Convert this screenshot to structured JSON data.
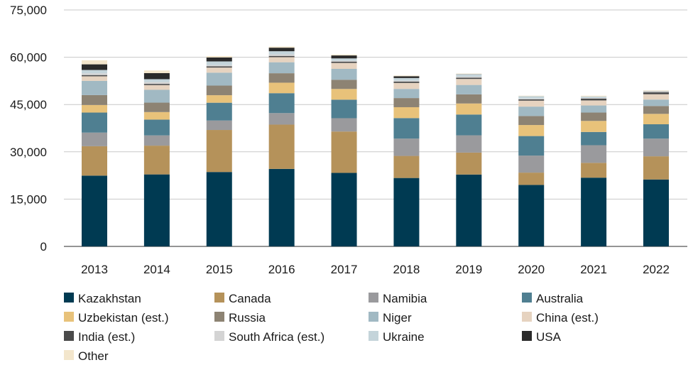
{
  "chart_data": {
    "type": "bar",
    "stacked": true,
    "categories": [
      "2013",
      "2014",
      "2015",
      "2016",
      "2017",
      "2018",
      "2019",
      "2020",
      "2021",
      "2022"
    ],
    "ylim": [
      0,
      75000
    ],
    "yticks": [
      0,
      15000,
      30000,
      45000,
      60000,
      75000
    ],
    "ytick_labels": [
      "0",
      "15,000",
      "30,000",
      "45,000",
      "60,000",
      "75,000"
    ],
    "grid": true,
    "legend_position": "bottom",
    "series": [
      {
        "name": "Kazakhstan",
        "color": "#003a52",
        "values": [
          22450,
          22830,
          23600,
          24590,
          23320,
          21700,
          22800,
          19500,
          21800,
          21230
        ]
      },
      {
        "name": "Canada",
        "color": "#b5925a",
        "values": [
          9330,
          9130,
          13330,
          14040,
          13120,
          7000,
          6950,
          3900,
          4700,
          7350
        ]
      },
      {
        "name": "Namibia",
        "color": "#9a9a9d",
        "values": [
          4320,
          3250,
          2990,
          3650,
          4220,
          5500,
          5480,
          5400,
          5600,
          5610
        ]
      },
      {
        "name": "Australia",
        "color": "#4f7f91",
        "values": [
          6350,
          5000,
          5650,
          6320,
          5880,
          6500,
          6600,
          6200,
          4200,
          4550
        ]
      },
      {
        "name": "Uzbekistan (est.)",
        "color": "#e8c27a",
        "values": [
          2400,
          2400,
          2385,
          3325,
          3400,
          3450,
          3500,
          3500,
          3500,
          3300
        ]
      },
      {
        "name": "Russia",
        "color": "#8d8373",
        "values": [
          3140,
          2990,
          3055,
          3004,
          2917,
          2900,
          2900,
          2850,
          2650,
          2500
        ]
      },
      {
        "name": "Niger",
        "color": "#a1b9c3",
        "values": [
          4520,
          4060,
          4100,
          3480,
          3450,
          2900,
          2980,
          2990,
          2250,
          2030
        ]
      },
      {
        "name": "China (est.)",
        "color": "#e6d3c0",
        "values": [
          1450,
          1500,
          1615,
          1616,
          1885,
          1900,
          1900,
          1900,
          1600,
          1700
        ]
      },
      {
        "name": "India (est.)",
        "color": "#4a4a4a",
        "values": [
          385,
          385,
          385,
          385,
          421,
          420,
          380,
          400,
          600,
          600
        ]
      },
      {
        "name": "South Africa (est.)",
        "color": "#d4d4d4",
        "values": [
          540,
          570,
          365,
          490,
          308,
          340,
          350,
          250,
          190,
          200
        ]
      },
      {
        "name": "Ukraine",
        "color": "#c4d4da",
        "values": [
          1075,
          926,
          1200,
          1005,
          707,
          790,
          750,
          744,
          455,
          100
        ]
      },
      {
        "name": "USA",
        "color": "#2a2a2a",
        "values": [
          1792,
          1919,
          1256,
          1125,
          940,
          582,
          67,
          6,
          8,
          75
        ]
      },
      {
        "name": "Other",
        "color": "#f3e6cc",
        "values": [
          1291,
          840,
          440,
          356,
          278,
          200,
          153,
          160,
          247,
          200
        ]
      }
    ]
  }
}
